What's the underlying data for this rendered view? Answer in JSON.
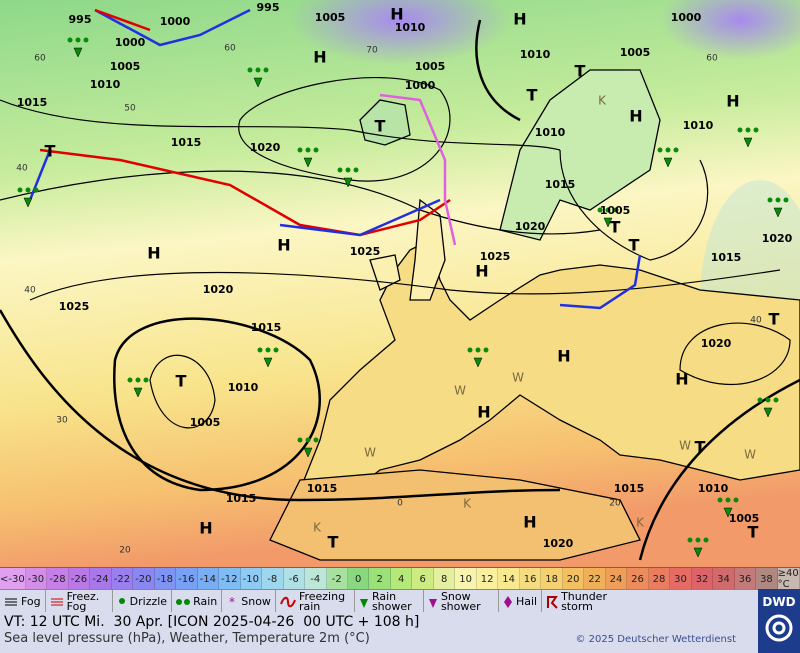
{
  "map": {
    "pressure_labels": [
      "995",
      "1000",
      "995",
      "1005",
      "1010",
      "1000",
      "1005",
      "1010",
      "1000",
      "1005",
      "1010",
      "1005",
      "1000",
      "1015",
      "1015",
      "1020",
      "1010",
      "1010",
      "1015",
      "1005",
      "1020",
      "1025",
      "1025",
      "1020",
      "1015",
      "1025",
      "1020",
      "1015",
      "1010",
      "1005",
      "1020",
      "1015",
      "1015",
      "1015",
      "1010",
      "1005",
      "1020"
    ],
    "pressure_centers": [
      "H",
      "H",
      "H",
      "H",
      "H",
      "H",
      "H",
      "H",
      "H",
      "H",
      "H",
      "H",
      "H",
      "T",
      "T",
      "T",
      "T",
      "T",
      "T",
      "T",
      "T",
      "T",
      "T",
      "T"
    ],
    "temperature_labels": [
      "60",
      "50",
      "40",
      "40",
      "30",
      "20",
      "70",
      "60",
      "60",
      "40",
      "20",
      "0"
    ],
    "region_letters": [
      "W",
      "W",
      "W",
      "W",
      "W",
      "K",
      "K",
      "K",
      "K"
    ]
  },
  "temperature_scale": {
    "labels": [
      "<-30",
      "-30",
      "-28",
      "-26",
      "-24",
      "-22",
      "-20",
      "-18",
      "-16",
      "-14",
      "-12",
      "-10",
      "-8",
      "-6",
      "-4",
      "-2",
      "0",
      "2",
      "4",
      "6",
      "8",
      "10",
      "12",
      "14",
      "16",
      "18",
      "20",
      "22",
      "24",
      "26",
      "28",
      "30",
      "32",
      "34",
      "36",
      "38",
      "≥40 °C"
    ],
    "colors": [
      "#e0a0f0",
      "#d38ee8",
      "#c580e8",
      "#b878e8",
      "#a878ea",
      "#9a80ee",
      "#8a88f0",
      "#7f94f2",
      "#78a0f4",
      "#7aaef4",
      "#80bcf4",
      "#8ecaf2",
      "#9ed6ee",
      "#aee0e6",
      "#bce6d8",
      "#a8e0a0",
      "#88d880",
      "#9ce07a",
      "#b4e878",
      "#cceb80",
      "#e4f0a0",
      "#f8f4b0",
      "#faf0a0",
      "#f8e890",
      "#f6dc80",
      "#f4d070",
      "#f2c060",
      "#f0b058",
      "#ee9e58",
      "#ec8c5c",
      "#ea7c60",
      "#e46c64",
      "#dc6468",
      "#d06a6c",
      "#c47a78",
      "#b08882",
      "#c8b8b0"
    ]
  },
  "legend": [
    "Fog",
    "Freez. Fog",
    "Drizzle",
    "Rain",
    "Snow",
    "Freezing rain",
    "Rain shower",
    "Snow shower",
    "Hail",
    "Thunder storm"
  ],
  "footer": {
    "valid_time": "VT: 12 UTC Mi.  30 Apr. [ICON 2025-04-26  00 UTC + 108 h]",
    "subtitle": "Sea level pressure (hPa), Weather, Temperature 2m (°C)",
    "copyright": "© 2025 Deutscher Wetterdienst",
    "logo": "DWD"
  }
}
